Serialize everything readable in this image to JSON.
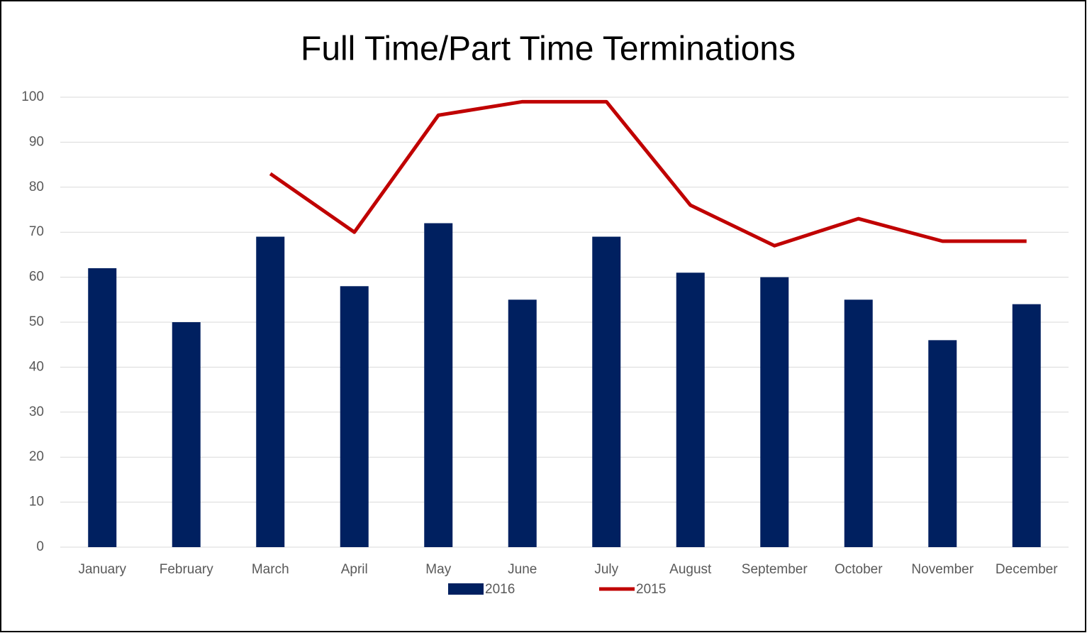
{
  "chart_data": {
    "type": "bar",
    "title": "Full Time/Part Time Terminations",
    "categories": [
      "January",
      "February",
      "March",
      "April",
      "May",
      "June",
      "July",
      "August",
      "September",
      "October",
      "November",
      "December"
    ],
    "series": [
      {
        "name": "2016",
        "type": "bar",
        "color": "#002060",
        "values": [
          62,
          50,
          69,
          58,
          72,
          55,
          69,
          61,
          60,
          55,
          46,
          54
        ]
      },
      {
        "name": "2015",
        "type": "line",
        "color": "#c00000",
        "values": [
          null,
          null,
          83,
          70,
          96,
          99,
          99,
          76,
          67,
          73,
          68,
          68
        ]
      }
    ],
    "ylim": [
      0,
      100
    ],
    "yticks": [
      0,
      10,
      20,
      30,
      40,
      50,
      60,
      70,
      80,
      90,
      100
    ],
    "grid": true,
    "legend": "bottom"
  }
}
